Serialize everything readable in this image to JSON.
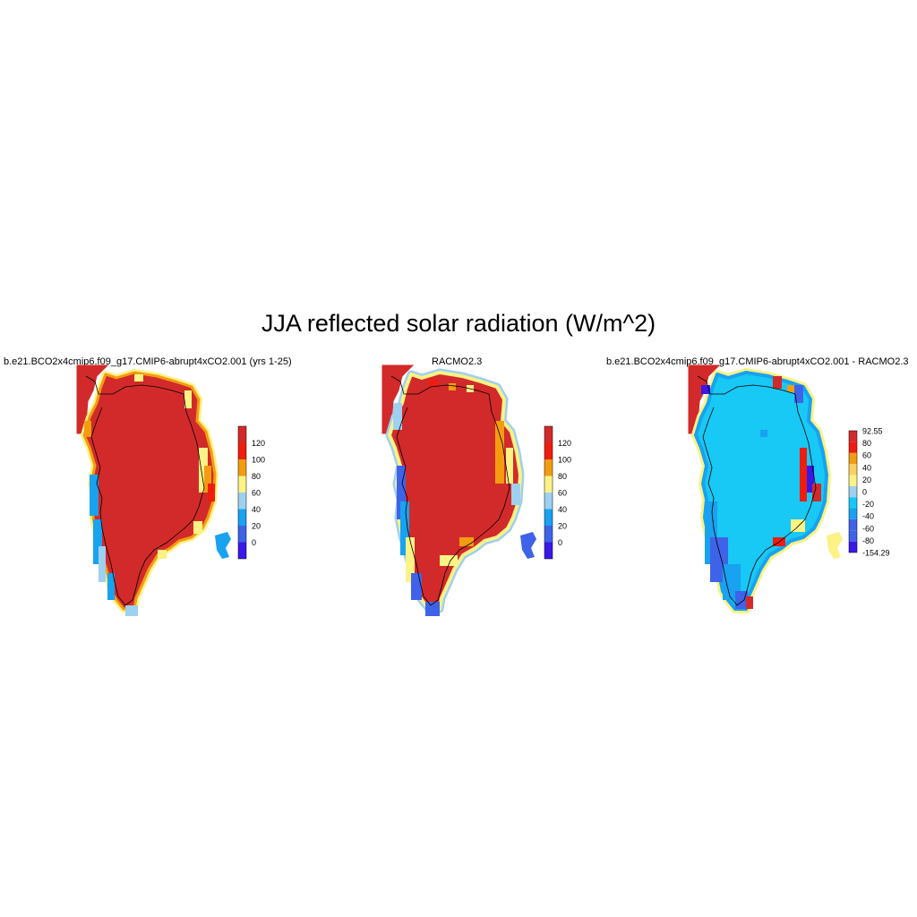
{
  "title": "JJA reflected solar radiation (W/m^2)",
  "panels": [
    {
      "title": "b.e21.BCO2x4cmip6.f09_g17.CMIP6-abrupt4xCO2.001 (yrs 1-25)",
      "colorbar": {
        "colors": [
          "#3a18e8",
          "#3f63e8",
          "#18a2f0",
          "#9ed0f0",
          "#fcf285",
          "#f39c10",
          "#ef1c10",
          "#d22a2a"
        ],
        "labels": [
          "0",
          "20",
          "40",
          "60",
          "80",
          "100",
          "120"
        ]
      }
    },
    {
      "title": "RACMO2.3",
      "colorbar": {
        "colors": [
          "#3a18e8",
          "#3f63e8",
          "#18a2f0",
          "#9ed0f0",
          "#fcf285",
          "#f39c10",
          "#ef1c10",
          "#d22a2a"
        ],
        "labels": [
          "0",
          "20",
          "40",
          "60",
          "80",
          "100",
          "120"
        ]
      }
    },
    {
      "title": "b.e21.BCO2x4cmip6.f09_g17.CMIP6-abrupt4xCO2.001 - RACMO2.3",
      "colorbar": {
        "colors": [
          "#3a18e8",
          "#3f63e8",
          "#3f63e8",
          "#18a2f0",
          "#18c8f5",
          "#9ed0f0",
          "#fcf285",
          "#fcd060",
          "#f39c10",
          "#ef1c10",
          "#d22a2a"
        ],
        "labels": [
          "92.55",
          "80",
          "60",
          "40",
          "20",
          "0",
          "-20",
          "-40",
          "-60",
          "-80",
          "-154.29"
        ]
      }
    }
  ]
}
